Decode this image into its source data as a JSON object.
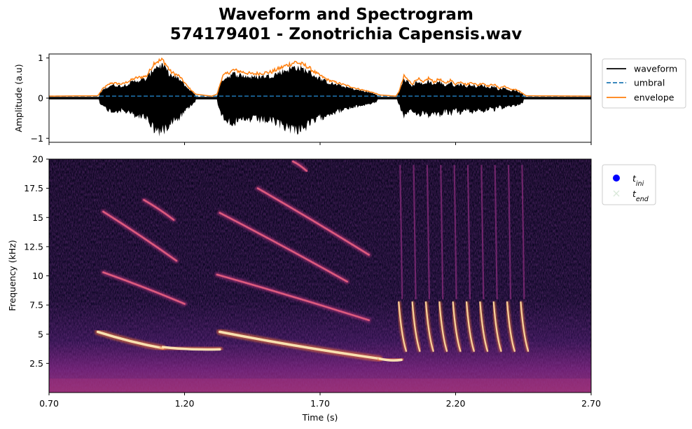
{
  "title_line1": "Waveform and Spectrogram",
  "title_line2": "574179401 - Zonotrichia Capensis.wav",
  "chart_data": [
    {
      "type": "line",
      "panel": "waveform",
      "ylabel": "Amplitude (a.u)",
      "xlim": [
        0.7,
        2.7
      ],
      "ylim": [
        -1.1,
        1.1
      ],
      "yticks": [
        "1",
        "0",
        "−1"
      ],
      "umbral": 0.05,
      "legend_position": "outside-right",
      "series": [
        {
          "name": "waveform",
          "color": "#000000",
          "style": "solid"
        },
        {
          "name": "umbral",
          "color": "#1f77b4",
          "style": "dashed"
        },
        {
          "name": "envelope",
          "color": "#ff7f0e",
          "style": "solid"
        }
      ],
      "envelope_points": {
        "x": [
          0.7,
          0.88,
          0.9,
          0.93,
          0.97,
          1.02,
          1.06,
          1.09,
          1.12,
          1.15,
          1.18,
          1.21,
          1.24,
          1.3,
          1.32,
          1.34,
          1.38,
          1.45,
          1.52,
          1.57,
          1.61,
          1.65,
          1.69,
          1.73,
          1.78,
          1.83,
          1.89,
          1.92,
          1.98,
          1.99,
          2.01,
          2.04,
          2.06,
          2.08,
          2.1,
          2.12,
          2.14,
          2.16,
          2.18,
          2.2,
          2.22,
          2.24,
          2.26,
          2.28,
          2.3,
          2.32,
          2.34,
          2.36,
          2.38,
          2.4,
          2.42,
          2.44,
          2.46,
          2.7
        ],
        "y": [
          0.05,
          0.06,
          0.25,
          0.38,
          0.35,
          0.5,
          0.55,
          0.9,
          0.95,
          0.65,
          0.55,
          0.3,
          0.1,
          0.05,
          0.1,
          0.55,
          0.7,
          0.6,
          0.65,
          0.8,
          0.9,
          0.8,
          0.6,
          0.45,
          0.35,
          0.25,
          0.15,
          0.08,
          0.05,
          0.15,
          0.55,
          0.35,
          0.5,
          0.38,
          0.5,
          0.4,
          0.48,
          0.36,
          0.45,
          0.35,
          0.42,
          0.33,
          0.4,
          0.32,
          0.38,
          0.3,
          0.35,
          0.25,
          0.3,
          0.22,
          0.22,
          0.15,
          0.06,
          0.05
        ]
      }
    },
    {
      "type": "heatmap",
      "panel": "spectrogram",
      "xlabel": "Time (s)",
      "ylabel": "Frequency (kHz)",
      "xlim": [
        0.7,
        2.7
      ],
      "ylim": [
        0,
        20
      ],
      "xticks": [
        "0.70",
        "1.20",
        "1.70",
        "2.20",
        "2.70"
      ],
      "yticks": [
        "2.5",
        "5",
        "7.5",
        "10",
        "12.5",
        "15",
        "17.5",
        "20"
      ],
      "colormap": "magma",
      "legend_position": "outside-right",
      "series": [
        {
          "name": "t_ini",
          "marker": "circle",
          "color": "#0000ff"
        },
        {
          "name": "t_end",
          "marker": "x",
          "color": "#d9e8d9"
        }
      ],
      "harmonic_tracks": [
        {
          "x": [
            0.88,
            1.12
          ],
          "y": [
            5.2,
            3.8
          ]
        },
        {
          "x": [
            0.9,
            1.2
          ],
          "y": [
            10.3,
            7.6
          ]
        },
        {
          "x": [
            0.9,
            1.17
          ],
          "y": [
            15.5,
            11.3
          ]
        },
        {
          "x": [
            1.05,
            1.16
          ],
          "y": [
            16.5,
            14.8
          ]
        },
        {
          "x": [
            1.12,
            1.33
          ],
          "y": [
            3.9,
            3.7
          ]
        },
        {
          "x": [
            1.33,
            1.92
          ],
          "y": [
            5.2,
            2.9
          ]
        },
        {
          "x": [
            1.32,
            1.88
          ],
          "y": [
            10.1,
            6.2
          ]
        },
        {
          "x": [
            1.33,
            1.8
          ],
          "y": [
            15.4,
            9.5
          ]
        },
        {
          "x": [
            1.47,
            1.88
          ],
          "y": [
            17.5,
            11.8
          ]
        },
        {
          "x": [
            1.6,
            1.65
          ],
          "y": [
            19.8,
            19.0
          ]
        },
        {
          "x": [
            1.92,
            2.0
          ],
          "y": [
            2.9,
            2.8
          ]
        }
      ],
      "trill_onsets": [
        1.99,
        2.04,
        2.09,
        2.14,
        2.19,
        2.24,
        2.29,
        2.34,
        2.39,
        2.44
      ],
      "trill_frequency_range": [
        3.5,
        19.5
      ]
    }
  ]
}
